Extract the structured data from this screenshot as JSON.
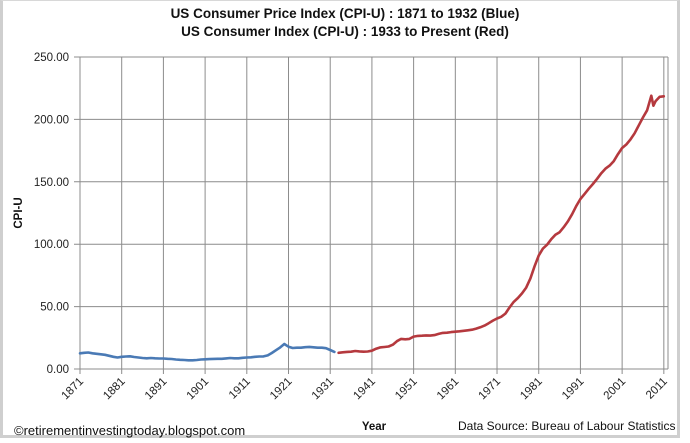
{
  "chart_data": {
    "type": "line",
    "title": "US Consumer Price Index (CPI-U) : 1871 to 1932 (Blue)",
    "subtitle": "US Consumer Index (CPI-U) : 1933 to Present (Red)",
    "xlabel": "Year",
    "ylabel": "CPI-U",
    "xlim": [
      1871,
      2012
    ],
    "ylim": [
      0,
      250
    ],
    "yticks": [
      "0.00",
      "50.00",
      "100.00",
      "150.00",
      "200.00",
      "250.00"
    ],
    "ytick_values": [
      0,
      50,
      100,
      150,
      200,
      250
    ],
    "xticks": [
      "1871",
      "1881",
      "1891",
      "1901",
      "1911",
      "1921",
      "1931",
      "1941",
      "1951",
      "1961",
      "1971",
      "1981",
      "1991",
      "2001",
      "2011"
    ],
    "grid": true,
    "legend": "none",
    "series": [
      {
        "name": "CPI-U 1871 to 1932",
        "color": "#4a7ab5",
        "x": [
          1871,
          1872,
          1873,
          1874,
          1875,
          1876,
          1877,
          1878,
          1879,
          1880,
          1881,
          1882,
          1883,
          1884,
          1885,
          1886,
          1887,
          1888,
          1889,
          1890,
          1891,
          1892,
          1893,
          1894,
          1895,
          1896,
          1897,
          1898,
          1899,
          1900,
          1901,
          1902,
          1903,
          1904,
          1905,
          1906,
          1907,
          1908,
          1909,
          1910,
          1911,
          1912,
          1913,
          1914,
          1915,
          1916,
          1917,
          1918,
          1919,
          1920,
          1921,
          1922,
          1923,
          1924,
          1925,
          1926,
          1927,
          1928,
          1929,
          1930,
          1931,
          1932
        ],
        "values": [
          12.6,
          13.0,
          13.2,
          12.6,
          12.2,
          11.8,
          11.4,
          10.6,
          9.8,
          9.2,
          9.8,
          10.0,
          10.2,
          9.6,
          9.2,
          8.8,
          8.6,
          8.8,
          8.6,
          8.4,
          8.4,
          8.2,
          8.0,
          7.6,
          7.4,
          7.2,
          7.0,
          7.0,
          7.2,
          7.6,
          7.8,
          7.9,
          8.1,
          8.2,
          8.2,
          8.5,
          8.8,
          8.6,
          8.6,
          9.0,
          9.2,
          9.4,
          9.8,
          10.0,
          10.1,
          10.9,
          12.8,
          15.1,
          17.3,
          20.0,
          17.9,
          16.8,
          17.1,
          17.1,
          17.5,
          17.7,
          17.4,
          17.1,
          17.1,
          16.7,
          15.2,
          13.7
        ]
      },
      {
        "name": "CPI-U 1933 to Present",
        "color": "#b5393e",
        "x": [
          1933,
          1934,
          1935,
          1936,
          1937,
          1938,
          1939,
          1940,
          1941,
          1942,
          1943,
          1944,
          1945,
          1946,
          1947,
          1948,
          1949,
          1950,
          1951,
          1952,
          1953,
          1954,
          1955,
          1956,
          1957,
          1958,
          1959,
          1960,
          1961,
          1962,
          1963,
          1964,
          1965,
          1966,
          1967,
          1968,
          1969,
          1970,
          1971,
          1972,
          1973,
          1974,
          1975,
          1976,
          1977,
          1978,
          1979,
          1980,
          1981,
          1982,
          1983,
          1984,
          1985,
          1986,
          1987,
          1988,
          1989,
          1990,
          1991,
          1992,
          1993,
          1994,
          1995,
          1996,
          1997,
          1998,
          1999,
          2000,
          2001,
          2002,
          2003,
          2004,
          2005,
          2006,
          2007,
          2008,
          2008.5,
          2009,
          2010,
          2011
        ],
        "values": [
          13.0,
          13.4,
          13.7,
          13.9,
          14.4,
          14.1,
          13.9,
          14.0,
          14.7,
          16.3,
          17.3,
          17.6,
          18.0,
          19.5,
          22.3,
          24.1,
          23.8,
          24.1,
          26.0,
          26.5,
          26.7,
          26.9,
          26.8,
          27.2,
          28.1,
          28.9,
          29.1,
          29.6,
          29.9,
          30.2,
          30.6,
          31.0,
          31.5,
          32.4,
          33.4,
          34.8,
          36.7,
          38.8,
          40.5,
          41.8,
          44.4,
          49.3,
          53.8,
          56.9,
          60.6,
          65.2,
          72.6,
          82.4,
          90.9,
          96.5,
          99.6,
          103.9,
          107.6,
          109.6,
          113.6,
          118.3,
          124.0,
          130.7,
          136.2,
          140.3,
          144.5,
          148.2,
          152.4,
          156.9,
          160.5,
          163.0,
          166.6,
          172.2,
          177.1,
          179.9,
          184.0,
          188.9,
          195.3,
          201.6,
          207.3,
          219.0,
          211.0,
          214.5,
          218.1,
          218.5
        ]
      }
    ]
  },
  "footer": {
    "copyright": "©retirementinvestingtoday.blogspot.com",
    "source": "Data Source: Bureau  of Labour Statistics"
  }
}
